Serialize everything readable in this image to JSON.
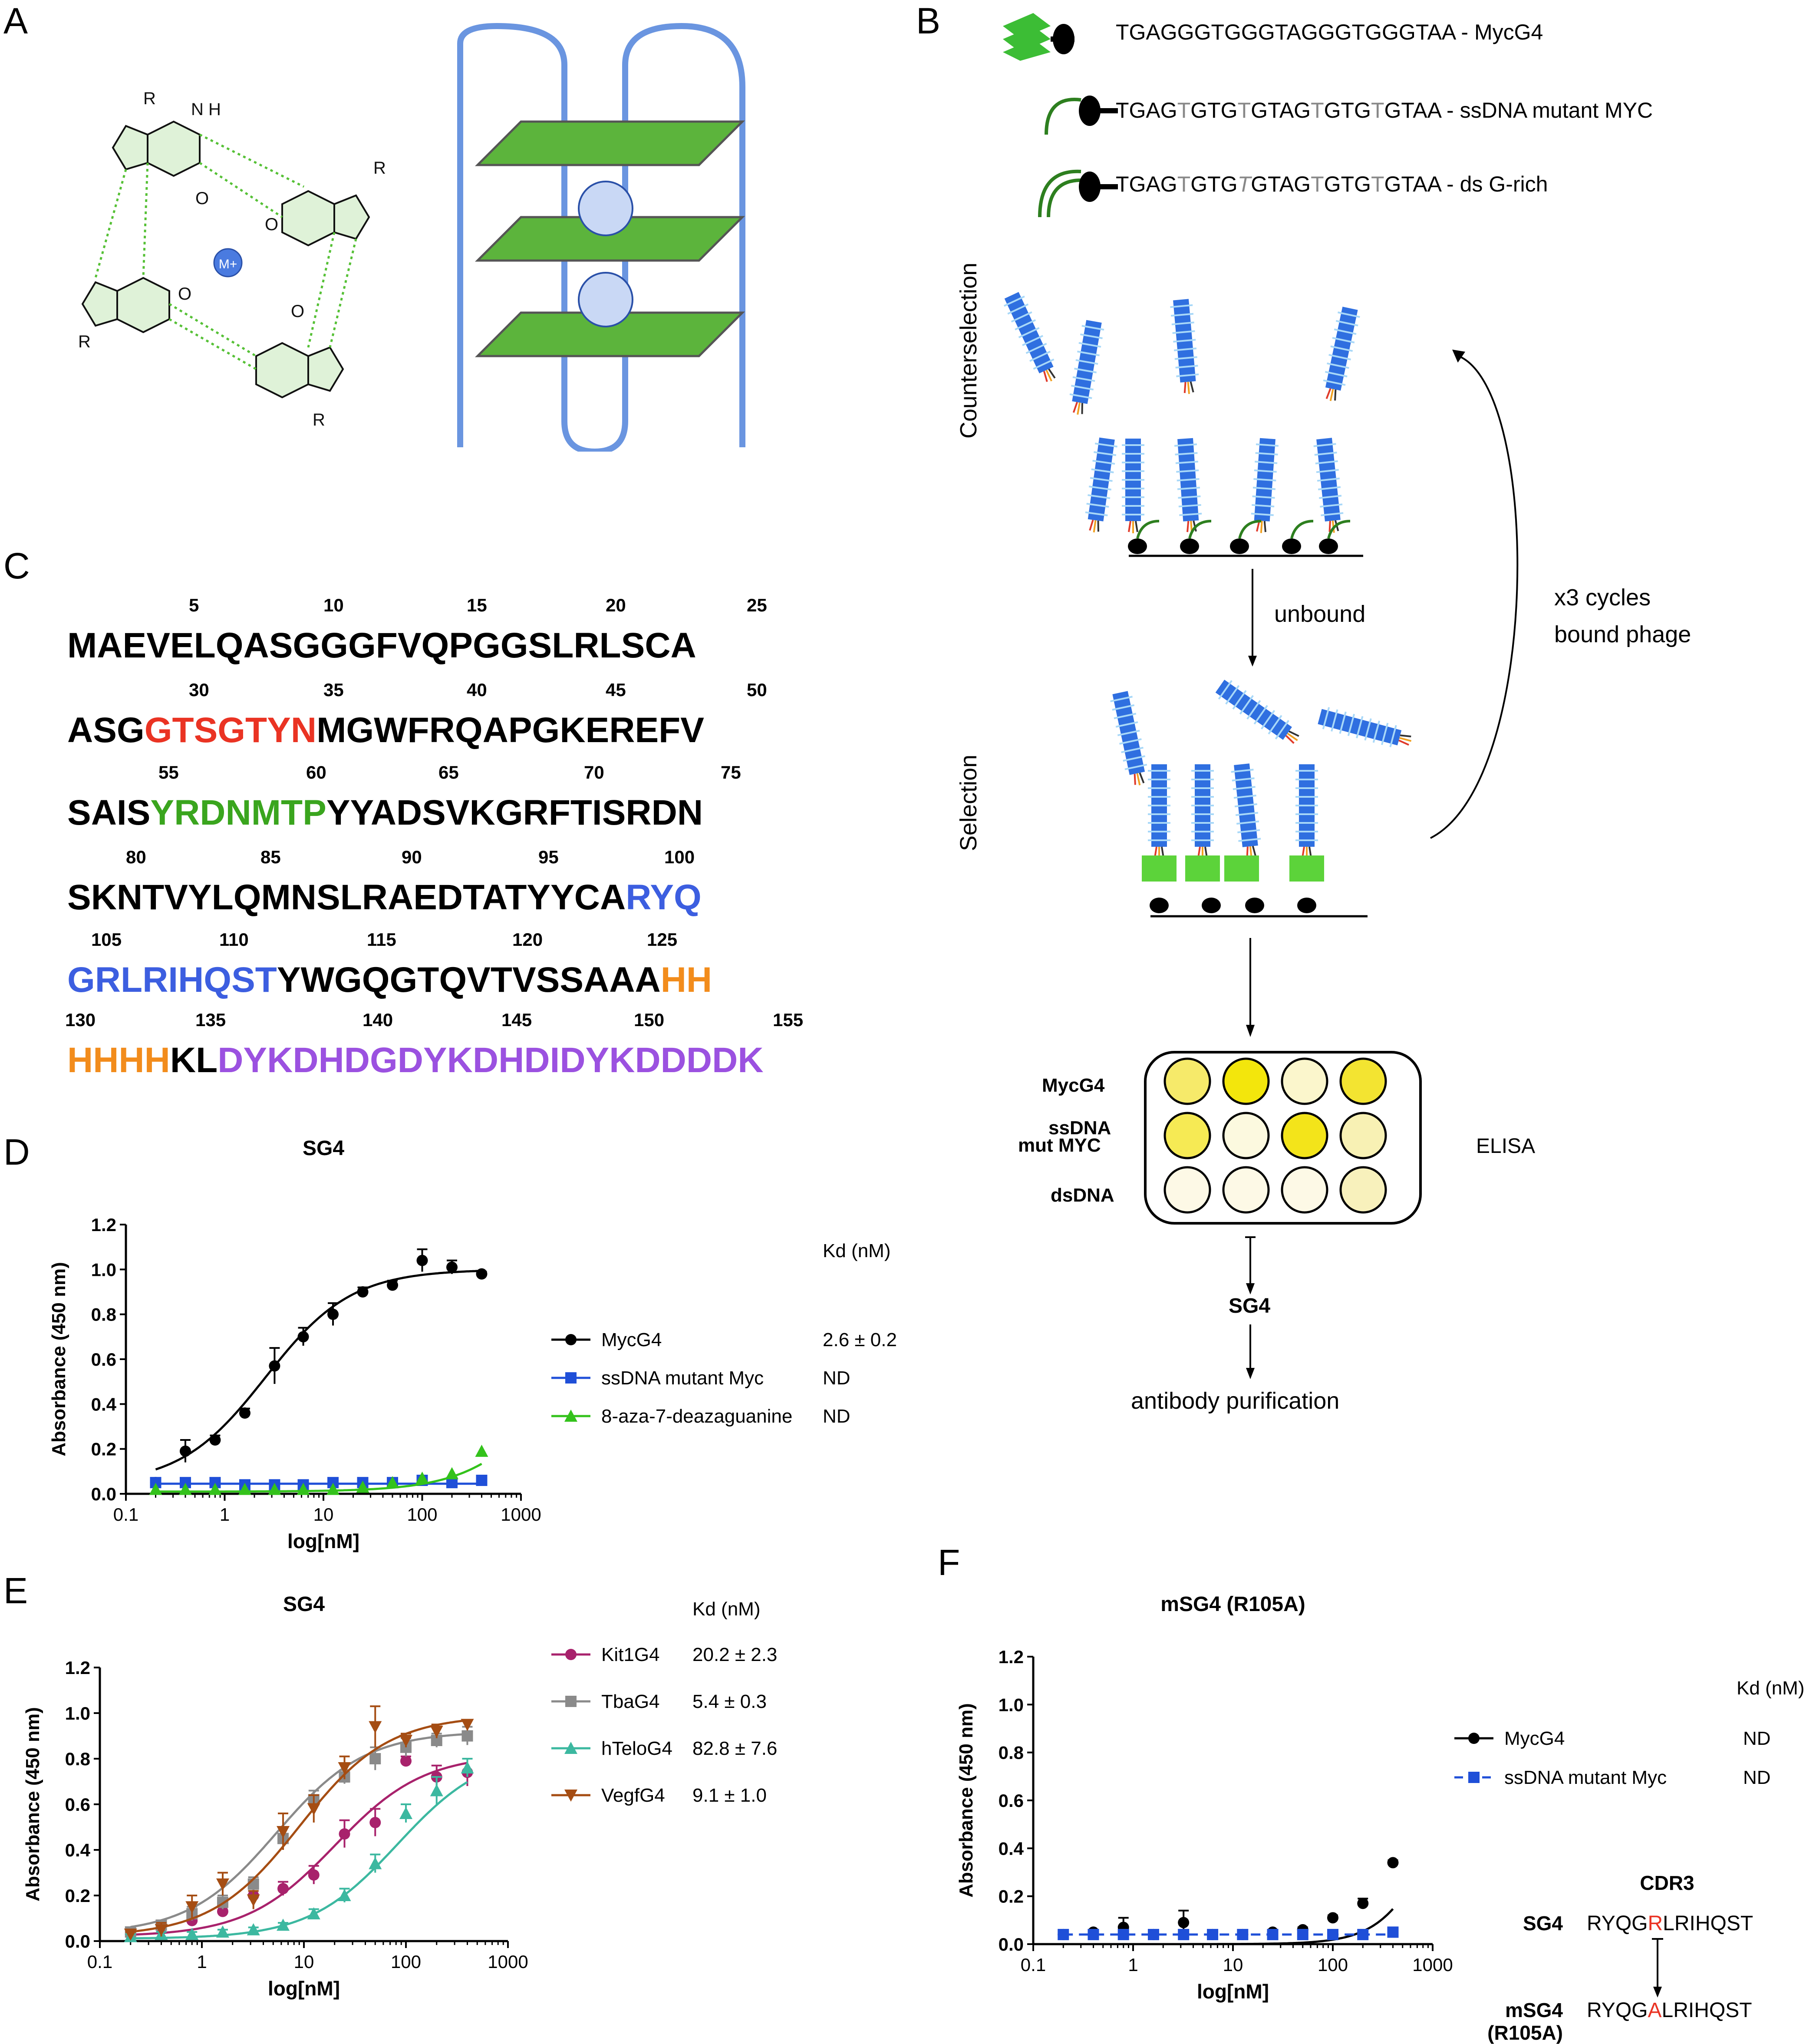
{
  "panels": {
    "A": "A",
    "B": "B",
    "C": "C",
    "D": "D",
    "E": "E",
    "F": "F"
  },
  "panel_a": {
    "metal_label": "M+",
    "r_label": "R",
    "h_label": "H",
    "n_label": "N",
    "o_label": "O"
  },
  "panel_b": {
    "sequences": [
      {
        "text_parts": [
          "TGAGGGTGGGTAGGGTGGGTAA - MycG4"
        ]
      },
      {
        "text_parts": [
          "TGAG",
          "T",
          "GTG",
          "T",
          "GTAG",
          "T",
          "GTG",
          "T",
          "GTAA - ssDNA mutant MYC"
        ]
      },
      {
        "text_parts": [
          "TGAG",
          "T",
          "GTG",
          "T",
          "GTAG",
          "T",
          "GTG",
          "T",
          "GTAA - ds G-rich"
        ]
      }
    ],
    "counterselection": "Counterselection",
    "selection": "Selection",
    "unbound": "unbound",
    "cycles_line1": "x3 cycles",
    "cycles_line2": "bound phage",
    "elisa": "ELISA",
    "rows": [
      "MycG4",
      "ssDNA",
      "mut MYC",
      "dsDNA"
    ],
    "well_colors": [
      [
        "#f6ea6a",
        "#f3e60c",
        "#fbf6cc",
        "#f3e431"
      ],
      [
        "#f6ea54",
        "#fcf9df",
        "#f3e41a",
        "#f8f1b4"
      ],
      [
        "#fdf9e6",
        "#fdf9e6",
        "#fdf9e6",
        "#f8f1bc"
      ]
    ],
    "sg4": "SG4",
    "purification": "antibody purification"
  },
  "panel_c": {
    "lines": [
      {
        "numbers": [
          "5",
          "10",
          "15",
          "20",
          "25"
        ],
        "segments": [
          {
            "t": "MAEVELQASGGGFVQPGGSLRLSCA",
            "c": "#000000"
          }
        ]
      },
      {
        "numbers": [
          "30",
          "35",
          "40",
          "45",
          "50"
        ],
        "segments": [
          {
            "t": "ASG",
            "c": "#000000"
          },
          {
            "t": "GTSGTYN",
            "c": "#ea3323"
          },
          {
            "t": "MGWFRQAPGKEREFV",
            "c": "#000000"
          }
        ]
      },
      {
        "numbers": [
          "55",
          "60",
          "65",
          "70",
          "75"
        ],
        "segments": [
          {
            "t": "SAIS",
            "c": "#000000"
          },
          {
            "t": "YRDNMTP",
            "c": "#3aa51e"
          },
          {
            "t": "YYADSVKGRFTISRDN",
            "c": "#000000"
          }
        ]
      },
      {
        "numbers": [
          "80",
          "85",
          "90",
          "95",
          "100"
        ],
        "segments": [
          {
            "t": "SKNTVYLQMNSLRAEDTATYYCA",
            "c": "#000000"
          },
          {
            "t": "RYQ",
            "c": "#3c5ee0"
          }
        ]
      },
      {
        "numbers": [
          "105",
          "110",
          "115",
          "120",
          "125"
        ],
        "segments": [
          {
            "t": "GRLRIHQST",
            "c": "#3c5ee0"
          },
          {
            "t": "YWGQGTQVTVSSAAA",
            "c": "#000000"
          },
          {
            "t": "HH",
            "c": "#f28c1c"
          }
        ]
      },
      {
        "numbers": [
          "130",
          "135",
          "140",
          "145",
          "150",
          "155"
        ],
        "segments": [
          {
            "t": "HHHH",
            "c": "#f28c1c"
          },
          {
            "t": "KL",
            "c": "#000000"
          },
          {
            "t": "DYKDHDGDYKDHDIDYKDDDDK",
            "c": "#9b51e0"
          }
        ]
      }
    ]
  },
  "chart_data": [
    {
      "id": "D",
      "type": "scatter",
      "title": "SG4",
      "xlabel": "log[nM]",
      "ylabel": "Absorbance (450 nm)",
      "xscale": "log",
      "xlim": [
        0.1,
        1000
      ],
      "ylim": [
        0,
        1.2
      ],
      "xticks": [
        "0.1",
        "1",
        "10",
        "100",
        "1000"
      ],
      "yticks": [
        "0.0",
        "0.2",
        "0.4",
        "0.6",
        "0.8",
        "1.0",
        "1.2"
      ],
      "kd_header": "Kd (nM)",
      "series": [
        {
          "name": "MycG4",
          "color": "#000000",
          "marker": "circle",
          "kd": "2.6 ± 0.2",
          "x": [
            0.2,
            0.4,
            0.8,
            1.6,
            3.2,
            6.25,
            12.5,
            25,
            50,
            100,
            200,
            400
          ],
          "y": [
            0.05,
            0.19,
            0.24,
            0.36,
            0.57,
            0.7,
            0.8,
            0.9,
            0.93,
            1.04,
            1.01,
            0.98
          ],
          "err": [
            0.01,
            0.05,
            0.02,
            0.02,
            0.08,
            0.04,
            0.05,
            0.02,
            0.02,
            0.05,
            0.03,
            0.01
          ],
          "fit": {
            "kind": "hill",
            "bottom": 0.04,
            "top": 1.0,
            "ec50": 2.6,
            "n": 1.0
          }
        },
        {
          "name": "ssDNA mutant Myc",
          "color": "#1f4fd8",
          "marker": "square",
          "kd": "ND",
          "x": [
            0.2,
            0.4,
            0.8,
            1.6,
            3.2,
            6.25,
            12.5,
            25,
            50,
            100,
            200,
            400
          ],
          "y": [
            0.05,
            0.05,
            0.05,
            0.04,
            0.04,
            0.04,
            0.05,
            0.05,
            0.05,
            0.06,
            0.05,
            0.06
          ],
          "fit": {
            "kind": "flat",
            "value": 0.045
          }
        },
        {
          "name": "8-aza-7-deazaguanine",
          "color": "#33c21b",
          "marker": "triangle",
          "kd": "ND",
          "x": [
            0.2,
            0.4,
            0.8,
            1.6,
            3.2,
            6.25,
            12.5,
            25,
            50,
            100,
            200,
            400
          ],
          "y": [
            0.02,
            0.02,
            0.02,
            0.02,
            0.02,
            0.02,
            0.02,
            0.03,
            0.05,
            0.07,
            0.09,
            0.19
          ],
          "fit": {
            "kind": "hill",
            "bottom": 0.01,
            "top": 1.0,
            "ec50": 2800,
            "n": 1.0
          }
        }
      ]
    },
    {
      "id": "E",
      "type": "scatter",
      "title": "SG4",
      "xlabel": "log[nM]",
      "ylabel": "Absorbance (450 nm)",
      "xscale": "log",
      "xlim": [
        0.1,
        1000
      ],
      "ylim": [
        0,
        1.2
      ],
      "xticks": [
        "0.1",
        "1",
        "10",
        "100",
        "1000"
      ],
      "yticks": [
        "0.0",
        "0.2",
        "0.4",
        "0.6",
        "0.8",
        "1.0",
        "1.2"
      ],
      "kd_header": "Kd (nM)",
      "series": [
        {
          "name": "Kit1G4",
          "color": "#a8226c",
          "marker": "circle",
          "kd": "20.2 ± 2.3",
          "x": [
            0.2,
            0.4,
            0.8,
            1.6,
            3.2,
            6.25,
            12.5,
            25,
            50,
            100,
            200,
            400
          ],
          "y": [
            0.03,
            0.06,
            0.09,
            0.13,
            0.2,
            0.23,
            0.29,
            0.47,
            0.52,
            0.79,
            0.72,
            0.74
          ],
          "err": [
            0.01,
            0.01,
            0.02,
            0.02,
            0.02,
            0.03,
            0.04,
            0.06,
            0.06,
            0.02,
            0.05,
            0.06
          ],
          "fit": {
            "kind": "hill",
            "bottom": 0.02,
            "top": 0.82,
            "ec50": 20.2,
            "n": 1.0
          }
        },
        {
          "name": "TbaG4",
          "color": "#8a8a8a",
          "marker": "square",
          "kd": "5.4 ± 0.3",
          "x": [
            0.2,
            0.4,
            0.8,
            1.6,
            3.2,
            6.25,
            12.5,
            25,
            50,
            100,
            200,
            400
          ],
          "y": [
            0.04,
            0.07,
            0.12,
            0.17,
            0.25,
            0.45,
            0.62,
            0.72,
            0.8,
            0.85,
            0.88,
            0.9
          ],
          "err": [
            0.01,
            0.02,
            0.03,
            0.03,
            0.03,
            0.05,
            0.04,
            0.03,
            0.05,
            0.04,
            0.03,
            0.04
          ],
          "fit": {
            "kind": "hill",
            "bottom": 0.03,
            "top": 0.92,
            "ec50": 5.4,
            "n": 1.0
          }
        },
        {
          "name": "hTeloG4",
          "color": "#3cb8a0",
          "marker": "triangle",
          "kd": "82.8 ± 7.6",
          "x": [
            0.2,
            0.4,
            0.8,
            1.6,
            3.2,
            6.25,
            12.5,
            25,
            50,
            100,
            200,
            400
          ],
          "y": [
            0.02,
            0.03,
            0.03,
            0.04,
            0.05,
            0.07,
            0.12,
            0.2,
            0.34,
            0.56,
            0.66,
            0.76
          ],
          "err": [
            0.01,
            0.01,
            0.01,
            0.01,
            0.01,
            0.01,
            0.02,
            0.03,
            0.04,
            0.04,
            0.06,
            0.04
          ],
          "fit": {
            "kind": "hill",
            "bottom": 0.01,
            "top": 0.84,
            "ec50": 82.8,
            "n": 1.0
          }
        },
        {
          "name": "VegfG4",
          "color": "#a54d13",
          "marker": "triangle-down",
          "kd": "9.1 ± 1.0",
          "x": [
            0.2,
            0.4,
            0.8,
            1.6,
            3.2,
            6.25,
            12.5,
            25,
            50,
            100,
            200,
            400
          ],
          "y": [
            0.03,
            0.05,
            0.15,
            0.25,
            0.18,
            0.48,
            0.58,
            0.76,
            0.94,
            0.88,
            0.92,
            0.95
          ],
          "err": [
            0.01,
            0.03,
            0.05,
            0.05,
            0.04,
            0.08,
            0.06,
            0.05,
            0.09,
            0.03,
            0.03,
            0.02
          ],
          "fit": {
            "kind": "hill",
            "bottom": 0.02,
            "top": 0.99,
            "ec50": 9.1,
            "n": 1.0
          }
        }
      ]
    },
    {
      "id": "F",
      "type": "scatter",
      "title": "mSG4 (R105A)",
      "xlabel": "log[nM]",
      "ylabel": "Absorbance (450 nm)",
      "xscale": "log",
      "xlim": [
        0.1,
        1000
      ],
      "ylim": [
        0,
        1.2
      ],
      "xticks": [
        "0.1",
        "1",
        "10",
        "100",
        "1000"
      ],
      "yticks": [
        "0.0",
        "0.2",
        "0.4",
        "0.6",
        "0.8",
        "1.0",
        "1.2"
      ],
      "kd_header": "Kd (nM)",
      "series": [
        {
          "name": "MycG4",
          "color": "#000000",
          "marker": "circle",
          "kd": "ND",
          "x": [
            0.2,
            0.4,
            0.8,
            1.6,
            3.2,
            6.25,
            12.5,
            25,
            50,
            100,
            200,
            400
          ],
          "y": [
            0.04,
            0.05,
            0.07,
            0.04,
            0.09,
            0.04,
            0.04,
            0.05,
            0.06,
            0.11,
            0.17,
            0.34
          ],
          "err": [
            0.01,
            0.01,
            0.04,
            0.01,
            0.05,
            0.01,
            0.01,
            0.01,
            0.01,
            0.01,
            0.02,
            0.01
          ],
          "fit": {
            "kind": "hill",
            "bottom": 0.0,
            "top": 1.0,
            "ec50": 1200,
            "n": 1.6
          }
        },
        {
          "name": "ssDNA mutant Myc",
          "color": "#1f4fd8",
          "marker": "square",
          "kd": "ND",
          "x": [
            0.2,
            0.4,
            0.8,
            1.6,
            3.2,
            6.25,
            12.5,
            25,
            50,
            100,
            200,
            400
          ],
          "y": [
            0.04,
            0.04,
            0.04,
            0.04,
            0.04,
            0.04,
            0.04,
            0.04,
            0.04,
            0.04,
            0.04,
            0.05
          ],
          "fit": {
            "kind": "flat",
            "value": 0.04,
            "dashed": true
          }
        }
      ],
      "cdr3": {
        "title": "CDR3",
        "rows": [
          {
            "label": "SG4",
            "pre": "RYQG",
            "mid": "R",
            "post": "LRIHQST"
          },
          {
            "label": "mSG4",
            "label2": "(R105A)",
            "pre": "RYQG",
            "mid": "A",
            "post": "LRIHQST"
          }
        ],
        "mut_color": "#ea3323"
      }
    }
  ]
}
